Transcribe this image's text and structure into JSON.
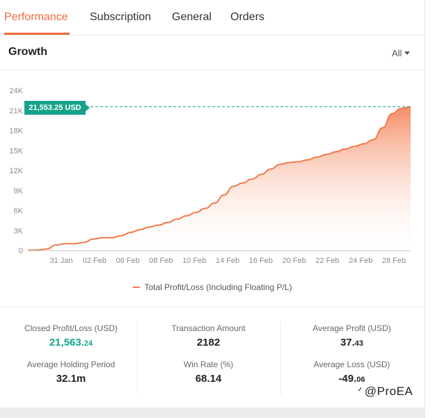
{
  "tabs": [
    {
      "label": "Performance",
      "active": true
    },
    {
      "label": "Subscription",
      "active": false
    },
    {
      "label": "General",
      "active": false
    },
    {
      "label": "Orders",
      "active": false
    }
  ],
  "growth": {
    "title": "Growth",
    "range_selected": "All"
  },
  "current_value_label": "21,553.25 USD",
  "chart_data": {
    "type": "area",
    "title": "",
    "xlabel": "",
    "ylabel": "",
    "y_ticks": [
      "0",
      "3K",
      "6K",
      "9K",
      "12K",
      "15K",
      "18K",
      "21K",
      "24K"
    ],
    "ylim": [
      0,
      24000
    ],
    "x_ticks": [
      "31 Jan",
      "02 Feb",
      "06 Feb",
      "08 Feb",
      "10 Feb",
      "14 Feb",
      "16 Feb",
      "20 Feb",
      "22 Feb",
      "24 Feb",
      "28 Feb"
    ],
    "series": [
      {
        "name": "Total Profit/Loss (Including Floating P/L)",
        "color": "#f07a4a",
        "values": [
          0,
          50,
          200,
          800,
          1000,
          1000,
          1200,
          1700,
          1900,
          1900,
          2200,
          2700,
          3100,
          3500,
          3800,
          4200,
          4700,
          5200,
          5700,
          6300,
          7100,
          8300,
          9600,
          10100,
          10700,
          11400,
          12200,
          12900,
          13200,
          13300,
          13600,
          14000,
          14400,
          14800,
          15200,
          15600,
          16000,
          16600,
          18400,
          20500,
          21300,
          21553
        ]
      }
    ],
    "grid": false,
    "legend_position": "bottom",
    "reference_line": 21553.25
  },
  "legend": {
    "label": "Total Profit/Loss (Including Floating P/L)"
  },
  "stats": {
    "closed_pl": {
      "label": "Closed Profit/Loss (USD)",
      "main": "21,563.",
      "decimals": "24"
    },
    "transaction_amount": {
      "label": "Transaction Amount",
      "value": "2182"
    },
    "average_profit": {
      "label": "Average Profit (USD)",
      "main": "37.",
      "decimals": "43"
    },
    "average_holding": {
      "label": "Average Holding Period",
      "value": "32.1m"
    },
    "win_rate": {
      "label": "Win Rate (%)",
      "value": "68.14"
    },
    "average_loss": {
      "label": "Average Loss (USD)",
      "main": "-49.",
      "decimals": "06"
    }
  },
  "watermark": {
    "icon": "zhihu-logo-icon",
    "text": "@ProEA"
  }
}
